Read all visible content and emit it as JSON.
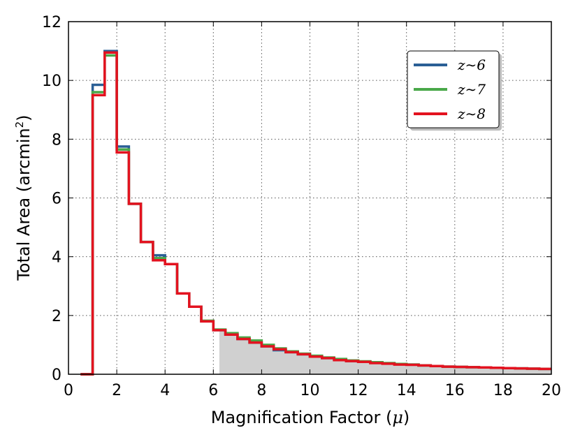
{
  "chart_data": {
    "type": "line",
    "style": "step",
    "xlabel_prefix": "Magnification Factor (",
    "xlabel_symbol": "μ",
    "xlabel_suffix": ")",
    "ylabel_prefix": "Total Area (arcmin",
    "ylabel_sup": "2",
    "ylabel_suffix": ")",
    "xlim": [
      0,
      20
    ],
    "ylim": [
      0,
      12
    ],
    "xticks": [
      0,
      2,
      4,
      6,
      8,
      10,
      12,
      14,
      16,
      18,
      20
    ],
    "yticks": [
      0,
      2,
      4,
      6,
      8,
      10,
      12
    ],
    "grid": true,
    "legend_position": "top-right",
    "shaded_region": {
      "x_start": 6.25,
      "x_end": 20,
      "color": "#d0d0d0"
    },
    "bin_edges": [
      0.5,
      1.0,
      1.5,
      2.0,
      2.5,
      3.0,
      3.5,
      4.0,
      4.5,
      5.0,
      5.5,
      6.0,
      6.5,
      7.0,
      7.5,
      8.0,
      8.5,
      9.0,
      9.5,
      10.0,
      10.5,
      11.0,
      11.5,
      12.0,
      12.5,
      13.0,
      13.5,
      14.0,
      14.5,
      15.0,
      15.5,
      16.0,
      16.5,
      17.0,
      17.5,
      18.0,
      18.5,
      19.0,
      19.5,
      20.0
    ],
    "series": [
      {
        "name": "z∼6",
        "color": "#2a5f95",
        "values": [
          0.0,
          9.85,
          11.0,
          7.75,
          5.8,
          4.5,
          4.05,
          3.75,
          2.75,
          2.3,
          1.8,
          1.5,
          1.35,
          1.2,
          1.08,
          0.95,
          0.82,
          0.75,
          0.68,
          0.6,
          0.55,
          0.5,
          0.45,
          0.43,
          0.4,
          0.37,
          0.35,
          0.33,
          0.3,
          0.28,
          0.26,
          0.25,
          0.24,
          0.23,
          0.22,
          0.21,
          0.2,
          0.19,
          0.18
        ]
      },
      {
        "name": "z∼7",
        "color": "#4aa84a",
        "values": [
          0.0,
          9.6,
          10.85,
          7.65,
          5.8,
          4.5,
          3.95,
          3.75,
          2.75,
          2.3,
          1.82,
          1.52,
          1.4,
          1.25,
          1.15,
          1.0,
          0.88,
          0.78,
          0.7,
          0.63,
          0.57,
          0.52,
          0.47,
          0.44,
          0.41,
          0.38,
          0.35,
          0.33,
          0.3,
          0.28,
          0.26,
          0.25,
          0.24,
          0.23,
          0.22,
          0.21,
          0.2,
          0.19,
          0.18
        ]
      },
      {
        "name": "z∼8",
        "color": "#e3121f",
        "values": [
          0.0,
          9.5,
          10.95,
          7.55,
          5.8,
          4.5,
          3.88,
          3.75,
          2.75,
          2.3,
          1.8,
          1.5,
          1.35,
          1.2,
          1.08,
          0.95,
          0.85,
          0.75,
          0.68,
          0.6,
          0.55,
          0.48,
          0.45,
          0.42,
          0.38,
          0.36,
          0.33,
          0.32,
          0.3,
          0.28,
          0.26,
          0.25,
          0.24,
          0.23,
          0.22,
          0.21,
          0.2,
          0.19,
          0.18
        ]
      }
    ]
  }
}
